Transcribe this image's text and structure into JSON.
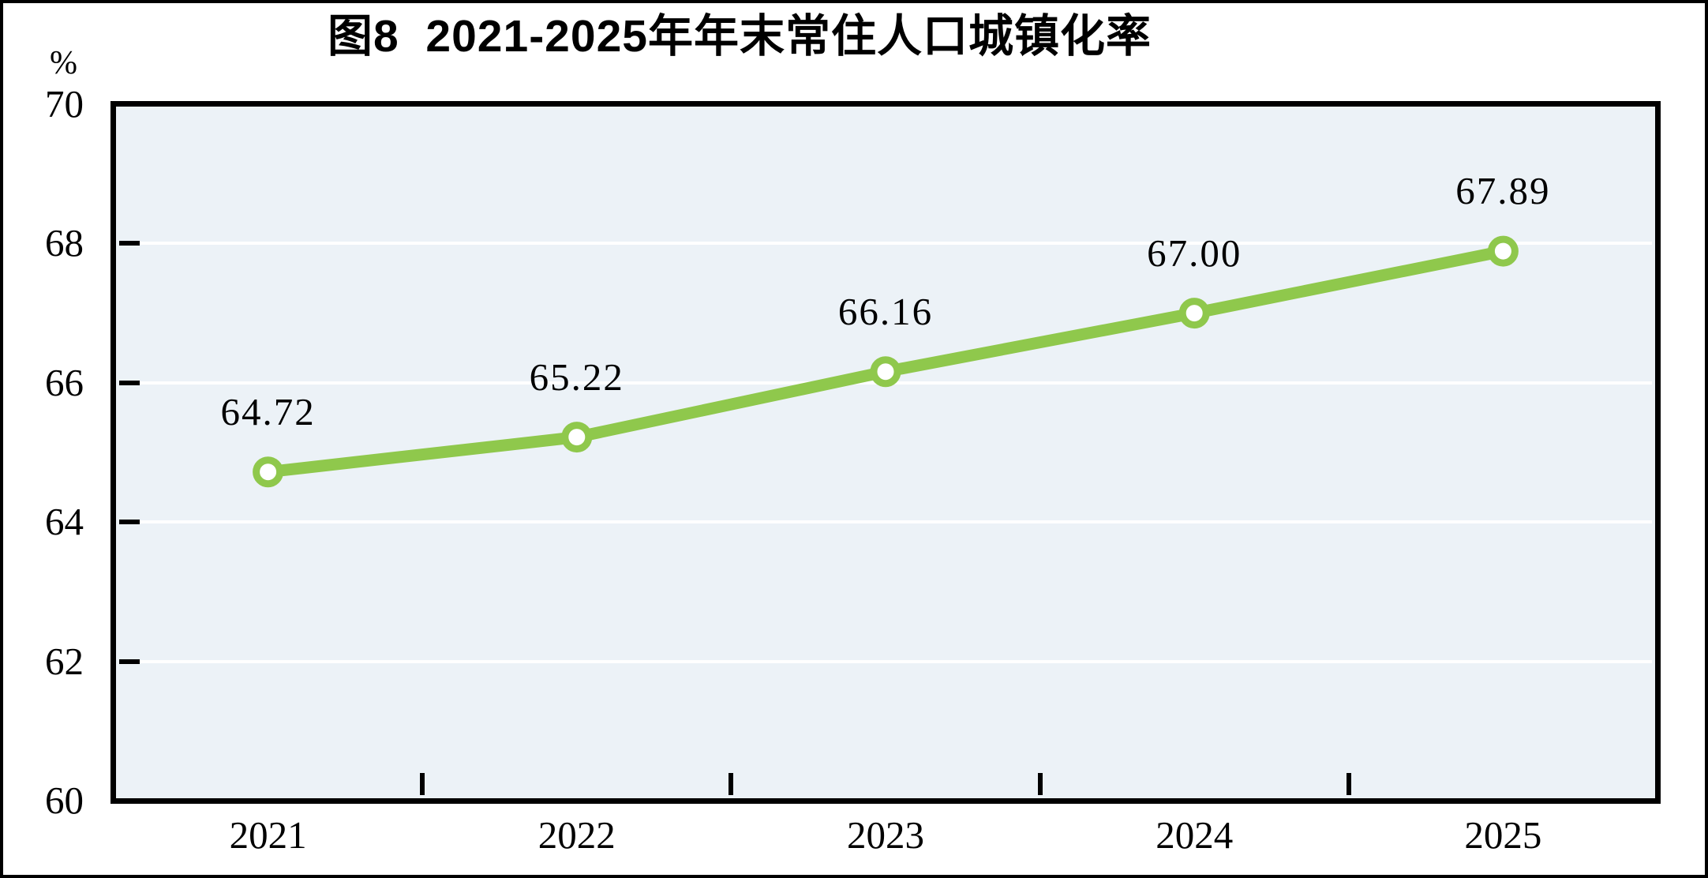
{
  "chart_data": {
    "type": "line",
    "title": "图8  2021-2025年年末常住人口城镇化率",
    "unit_label": "%",
    "categories": [
      "2021",
      "2022",
      "2023",
      "2024",
      "2025"
    ],
    "series": [
      {
        "name": "年末常住人口城镇化率",
        "values": [
          64.72,
          65.22,
          66.16,
          67.0,
          67.89
        ],
        "point_labels": [
          "64.72",
          "65.22",
          "66.16",
          "67.00",
          "67.89"
        ]
      }
    ],
    "ylim": [
      60,
      70
    ],
    "ytick_values": [
      70,
      68,
      66,
      64,
      62,
      60
    ],
    "ytick_labels": [
      "70",
      "68",
      "66",
      "64",
      "62",
      "60"
    ],
    "gridline_values": [
      68,
      66,
      64,
      62
    ],
    "grid": "horizontal-white",
    "legend": "none",
    "colors": {
      "line": "#8FC84C",
      "marker_fill": "#FFFFFF",
      "marker_stroke": "#8FC84C",
      "plot_background": "#ECF2F7",
      "gridline": "#FFFFFF",
      "axis": "#000000",
      "text": "#000000"
    }
  }
}
